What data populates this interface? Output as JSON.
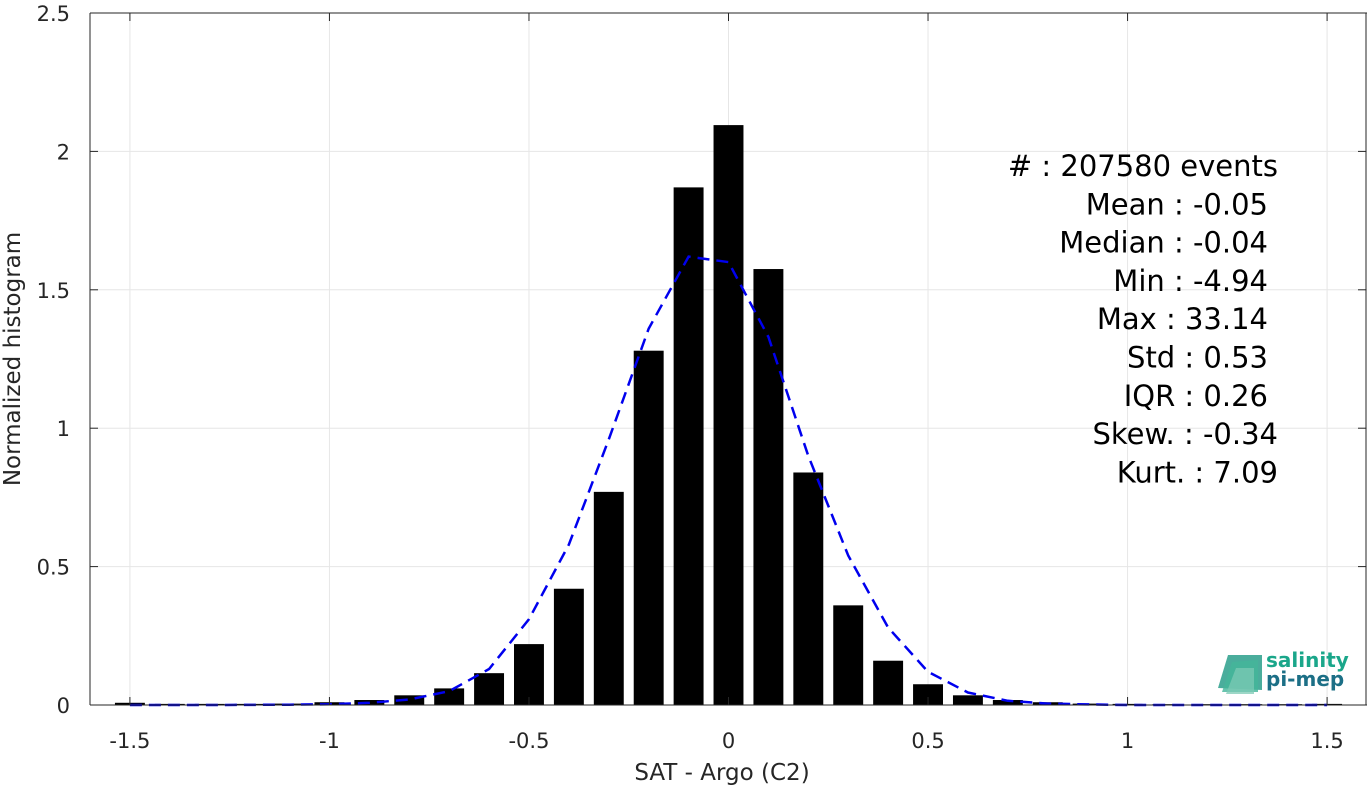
{
  "chart_data": {
    "type": "bar",
    "xlabel": "SAT - Argo (C2)",
    "ylabel": "Normalized histogram",
    "xlim": [
      -1.6,
      1.6
    ],
    "ylim": [
      0,
      2.5
    ],
    "grid": true,
    "xticks": [
      -1.5,
      -1,
      -0.5,
      0,
      0.5,
      1,
      1.5
    ],
    "xtick_labels": [
      "-1.5",
      "-1",
      "-0.5",
      "0",
      "0.5",
      "1",
      "1.5"
    ],
    "yticks": [
      0,
      0.5,
      1,
      1.5,
      2,
      2.5
    ],
    "ytick_labels": [
      "0",
      "0.5",
      "1",
      "1.5",
      "2",
      "2.5"
    ],
    "bar_width": 0.075,
    "bar_color": "#000000",
    "bars": [
      {
        "x": -1.5,
        "y": 0.008
      },
      {
        "x": -1.4,
        "y": 0.004
      },
      {
        "x": -1.3,
        "y": 0.004
      },
      {
        "x": -1.2,
        "y": 0.004
      },
      {
        "x": -1.1,
        "y": 0.005
      },
      {
        "x": -1.0,
        "y": 0.01
      },
      {
        "x": -0.9,
        "y": 0.018
      },
      {
        "x": -0.8,
        "y": 0.035
      },
      {
        "x": -0.7,
        "y": 0.06
      },
      {
        "x": -0.6,
        "y": 0.115
      },
      {
        "x": -0.5,
        "y": 0.22
      },
      {
        "x": -0.4,
        "y": 0.42
      },
      {
        "x": -0.3,
        "y": 0.77
      },
      {
        "x": -0.2,
        "y": 1.28
      },
      {
        "x": -0.1,
        "y": 1.87
      },
      {
        "x": 0.0,
        "y": 2.095
      },
      {
        "x": 0.1,
        "y": 1.575
      },
      {
        "x": 0.2,
        "y": 0.84
      },
      {
        "x": 0.3,
        "y": 0.36
      },
      {
        "x": 0.4,
        "y": 0.16
      },
      {
        "x": 0.5,
        "y": 0.075
      },
      {
        "x": 0.6,
        "y": 0.035
      },
      {
        "x": 0.7,
        "y": 0.018
      },
      {
        "x": 0.8,
        "y": 0.01
      },
      {
        "x": 0.9,
        "y": 0.005
      },
      {
        "x": 1.0,
        "y": 0.004
      },
      {
        "x": 1.1,
        "y": 0.003
      },
      {
        "x": 1.2,
        "y": 0.003
      },
      {
        "x": 1.3,
        "y": 0.003
      },
      {
        "x": 1.4,
        "y": 0.003
      },
      {
        "x": 1.5,
        "y": 0.004
      }
    ],
    "fit_curve": {
      "style": "dashed",
      "color": "#0000ee",
      "points": [
        [
          -1.5,
          0.0
        ],
        [
          -1.3,
          0.0
        ],
        [
          -1.1,
          0.001
        ],
        [
          -1.0,
          0.003
        ],
        [
          -0.9,
          0.008
        ],
        [
          -0.8,
          0.02
        ],
        [
          -0.7,
          0.05
        ],
        [
          -0.6,
          0.13
        ],
        [
          -0.5,
          0.31
        ],
        [
          -0.4,
          0.58
        ],
        [
          -0.3,
          0.96
        ],
        [
          -0.2,
          1.36
        ],
        [
          -0.1,
          1.62
        ],
        [
          0.0,
          1.6
        ],
        [
          0.1,
          1.33
        ],
        [
          0.2,
          0.9
        ],
        [
          0.3,
          0.54
        ],
        [
          0.4,
          0.28
        ],
        [
          0.5,
          0.12
        ],
        [
          0.6,
          0.045
        ],
        [
          0.7,
          0.015
        ],
        [
          0.8,
          0.005
        ],
        [
          0.9,
          0.002
        ],
        [
          1.0,
          0.0
        ],
        [
          1.2,
          0.0
        ],
        [
          1.5,
          0.0
        ]
      ]
    },
    "stats": [
      "#  : 207580 events",
      "Mean : -0.05",
      "Median : -0.04",
      "Min : -4.94",
      "Max : 33.14",
      "Std : 0.53",
      "IQR : 0.26",
      "Skew. : -0.34",
      "Kurt. : 7.09"
    ]
  },
  "logo": {
    "line1": "salinity",
    "line2": "pi-mep",
    "color1": "#1aa68a",
    "color2": "#1c6f86"
  },
  "colors": {
    "grid": "#e6e6e6",
    "axis": "#262626"
  }
}
